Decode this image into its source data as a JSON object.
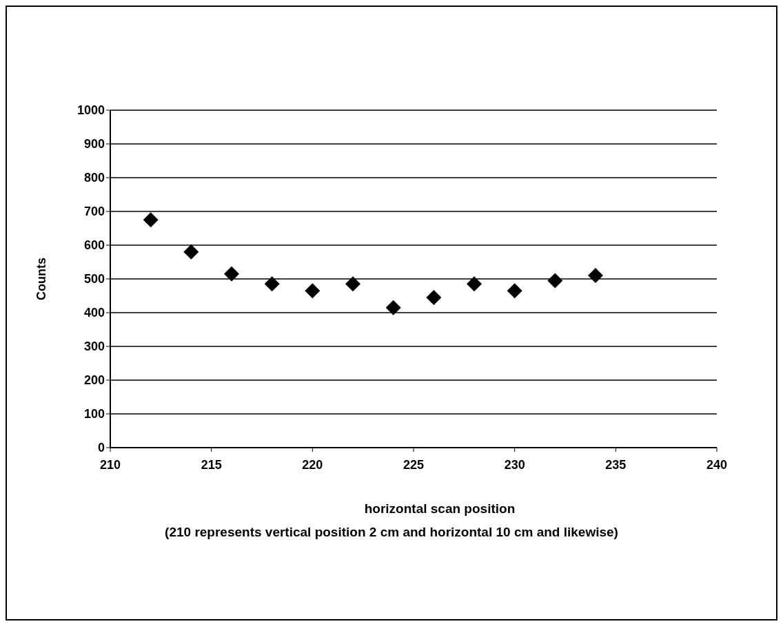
{
  "chart_data": {
    "type": "scatter",
    "xlabel": "horizontal scan position",
    "annotations": [
      "(210 represents vertical position 2 cm and horizontal 10 cm and likewise)"
    ],
    "ylabel": "Counts",
    "x": [
      212,
      214,
      216,
      218,
      220,
      222,
      224,
      226,
      228,
      230,
      232,
      234
    ],
    "values": [
      675,
      580,
      515,
      485,
      465,
      485,
      415,
      445,
      485,
      465,
      495,
      510
    ],
    "color": "#000000",
    "marker": "diamond",
    "xlim": [
      210,
      240
    ],
    "xticks": [
      210,
      215,
      220,
      225,
      230,
      235,
      240
    ],
    "ylim": [
      0,
      1000
    ],
    "yticks": [
      0,
      100,
      200,
      300,
      400,
      500,
      600,
      700,
      800,
      900,
      1000
    ],
    "grid": "y",
    "legend": false
  }
}
